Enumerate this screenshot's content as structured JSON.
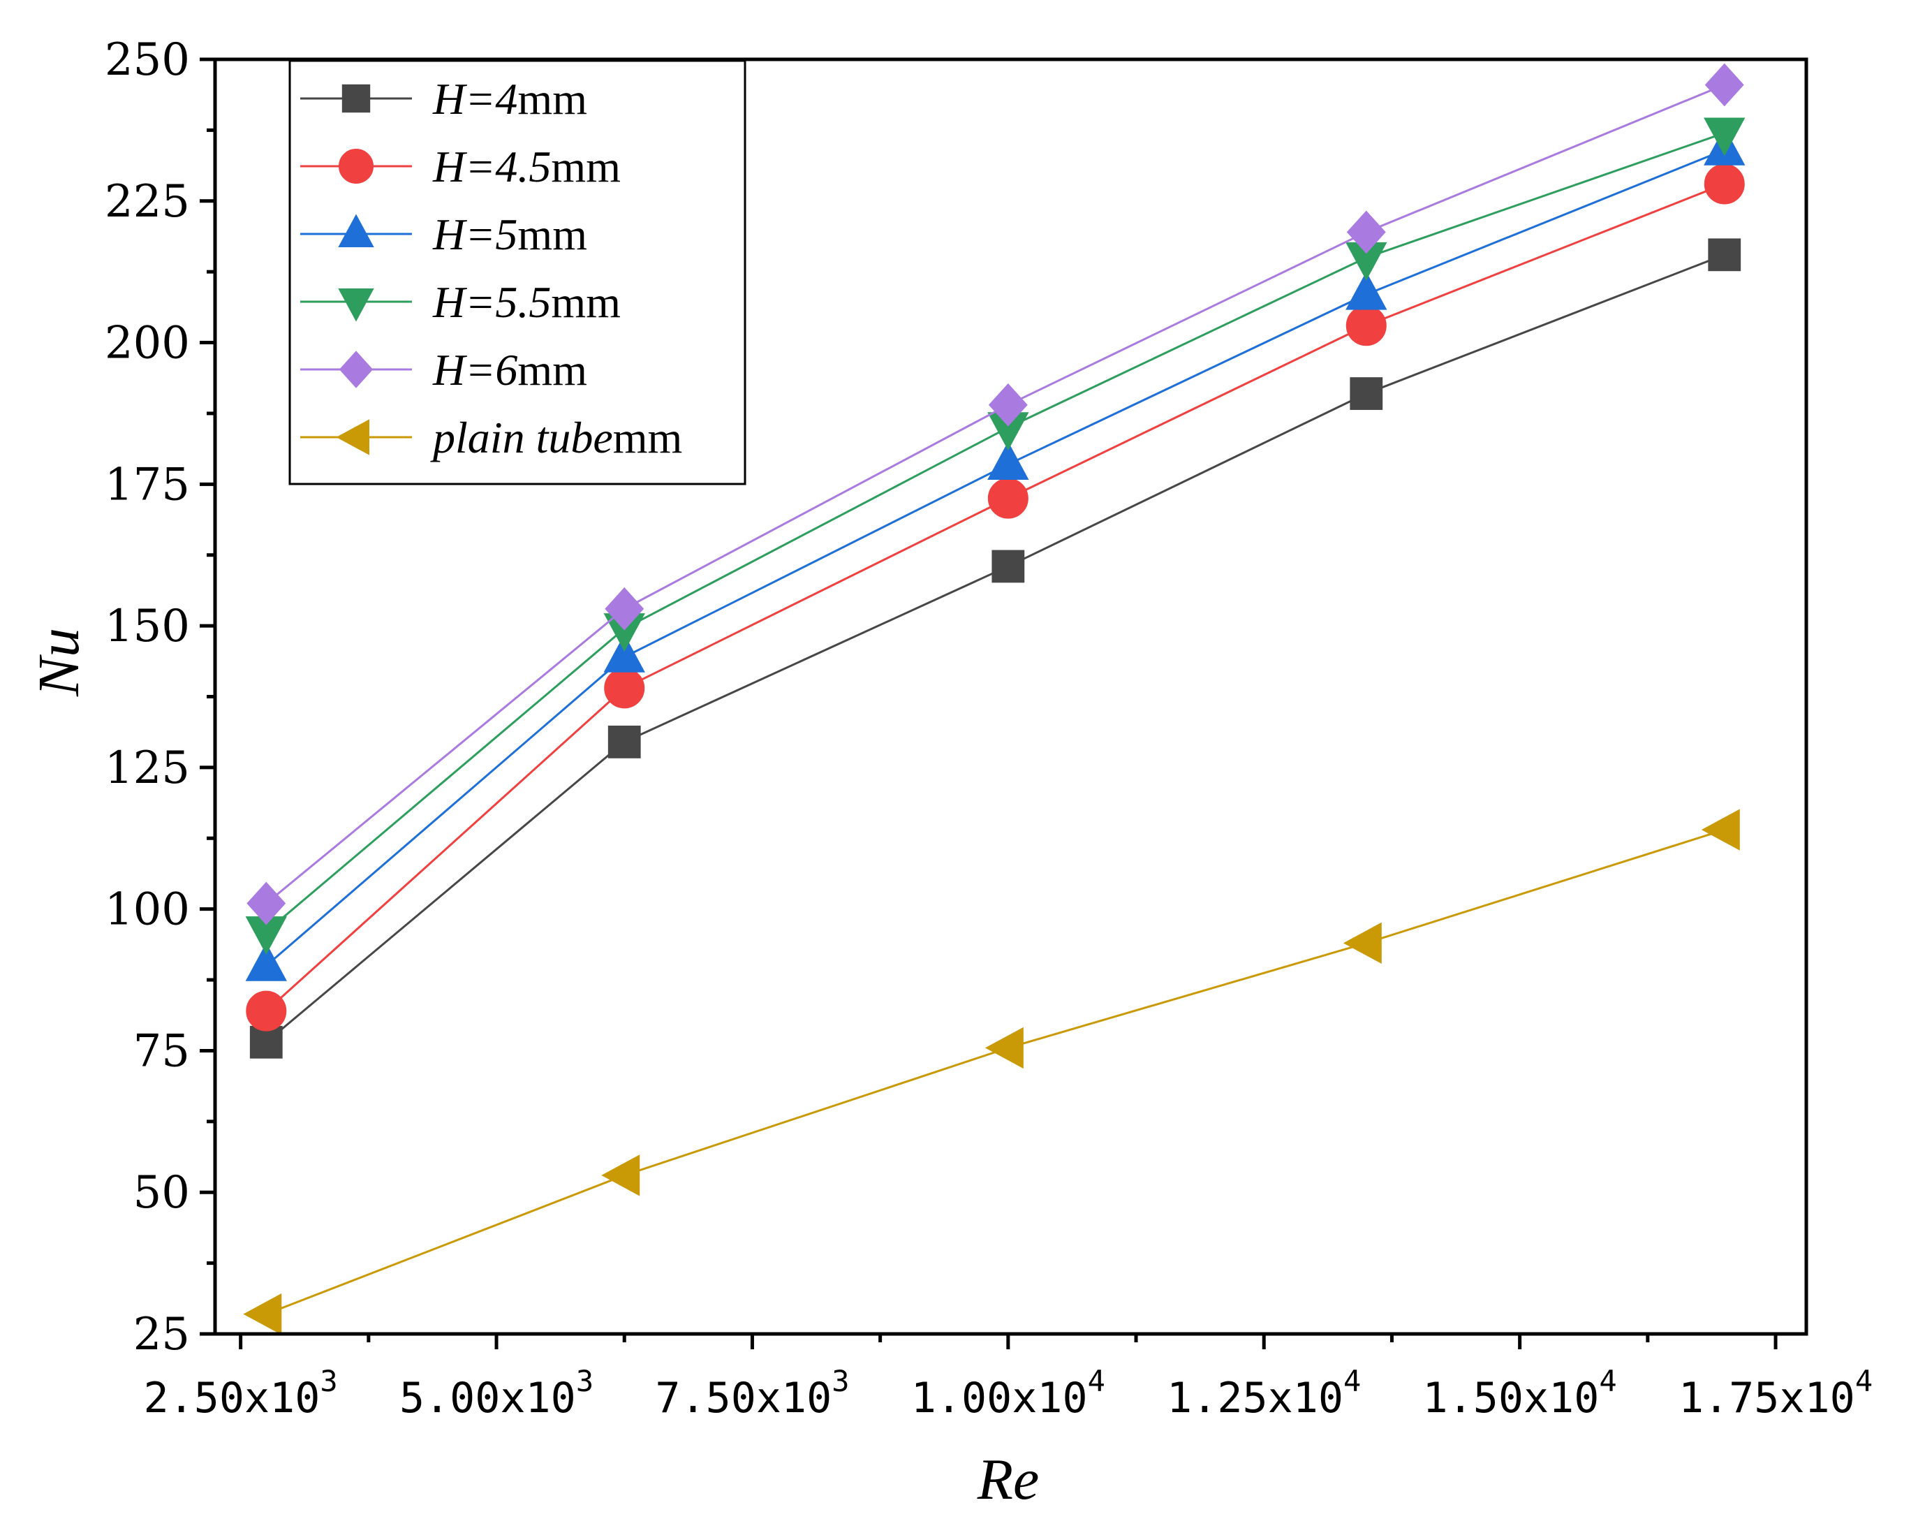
{
  "chart_data": {
    "type": "line",
    "xlabel": "Re",
    "ylabel": "Nu",
    "xlim": [
      2250,
      17800
    ],
    "ylim": [
      25,
      250
    ],
    "x_ticks": [
      {
        "value": 2500,
        "mant": "2.50x10",
        "exp": "3"
      },
      {
        "value": 5000,
        "mant": "5.00x10",
        "exp": "3"
      },
      {
        "value": 7500,
        "mant": "7.50x10",
        "exp": "3"
      },
      {
        "value": 10000,
        "mant": "1.00x10",
        "exp": "4"
      },
      {
        "value": 12500,
        "mant": "1.25x10",
        "exp": "4"
      },
      {
        "value": 15000,
        "mant": "1.50x10",
        "exp": "4"
      },
      {
        "value": 17500,
        "mant": "1.75x10",
        "exp": "4"
      }
    ],
    "x_minor_ticks": [
      3750,
      6250,
      8750,
      11250,
      13750,
      16250
    ],
    "y_ticks": [
      25,
      50,
      75,
      100,
      125,
      150,
      175,
      200,
      225,
      250
    ],
    "y_minor_ticks": [
      37.5,
      62.5,
      87.5,
      112.5,
      137.5,
      162.5,
      187.5,
      212.5,
      237.5
    ],
    "grid": false,
    "legend_position": "top-left",
    "x": [
      2750,
      6250,
      10000,
      13500,
      17000
    ],
    "series": [
      {
        "name": "H=4mm",
        "label_italic": "H=4",
        "label_unit": "mm",
        "marker": "square",
        "color": "#474747",
        "values": [
          76.5,
          129.5,
          160.5,
          191,
          215.5
        ]
      },
      {
        "name": "H=4.5mm",
        "label_italic": "H=4.5",
        "label_unit": "mm",
        "marker": "circle",
        "color": "#f04040",
        "values": [
          82,
          139,
          172.5,
          203,
          228
        ]
      },
      {
        "name": "H=5mm",
        "label_italic": "H=5",
        "label_unit": "mm",
        "marker": "triangle-up",
        "color": "#1e6fd8",
        "values": [
          90,
          144.5,
          178.5,
          208.5,
          234
        ]
      },
      {
        "name": "H=5.5mm",
        "label_italic": "H=5.5",
        "label_unit": "mm",
        "marker": "triangle-down",
        "color": "#2e9e5f",
        "values": [
          96,
          149.5,
          185,
          215,
          237
        ]
      },
      {
        "name": "H=6mm",
        "label_italic": "H=6",
        "label_unit": "mm",
        "marker": "diamond",
        "color": "#a97be0",
        "values": [
          101,
          153,
          189,
          219.5,
          245.5
        ]
      },
      {
        "name": "plain tubemm",
        "label_italic": "plain tube",
        "label_unit": "mm",
        "marker": "triangle-left",
        "color": "#c99a06",
        "values": [
          28.5,
          53,
          75.5,
          94,
          114
        ]
      }
    ]
  }
}
